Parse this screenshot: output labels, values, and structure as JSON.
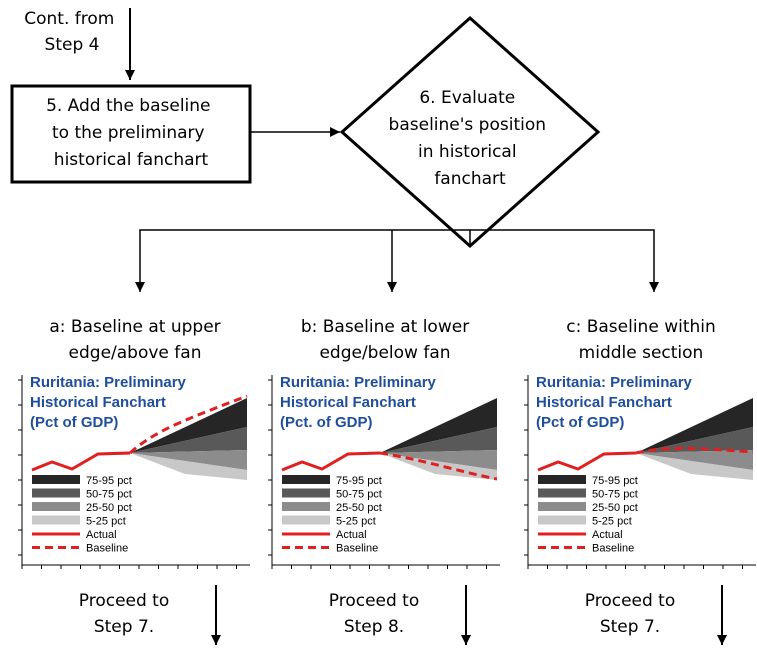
{
  "start_note": [
    "Cont. from",
    "Step 4"
  ],
  "step5": [
    "5. Add the baseline",
    "to the preliminary",
    "historical fanchart"
  ],
  "step6": [
    "6. Evaluate",
    "baseline's position",
    "in historical",
    "fanchart"
  ],
  "colors": {
    "actual": "#e02020",
    "title": "#1f4e9c",
    "band_75_95": "#262626",
    "band_50_75": "#595959",
    "band_25_50": "#8c8c8c",
    "band_5_25": "#c8c8c8"
  },
  "panels": [
    {
      "heading": [
        "a: Baseline at upper",
        "edge/above fan"
      ],
      "title": [
        "Ruritania: Preliminary",
        "Historical Fanchart",
        "(Pct of GDP)"
      ],
      "outcome": [
        "Proceed to",
        "Step 7."
      ],
      "baseline_case": "above"
    },
    {
      "heading": [
        "b: Baseline at lower",
        "edge/below fan"
      ],
      "title": [
        "Ruritania: Preliminary",
        "Historical Fanchart",
        "(Pct. of GDP)"
      ],
      "outcome": [
        "Proceed to",
        "Step 8."
      ],
      "baseline_case": "below"
    },
    {
      "heading": [
        "c: Baseline within",
        "middle section"
      ],
      "title": [
        "Ruritania: Preliminary",
        "Historical Fanchart",
        "(Pct of GDP)"
      ],
      "outcome": [
        "Proceed to",
        "Step 7."
      ],
      "baseline_case": "middle"
    }
  ],
  "legend": [
    "75-95 pct",
    "50-75 pct",
    "25-50 pct",
    "5-25 pct",
    "Actual",
    "Baseline"
  ]
}
